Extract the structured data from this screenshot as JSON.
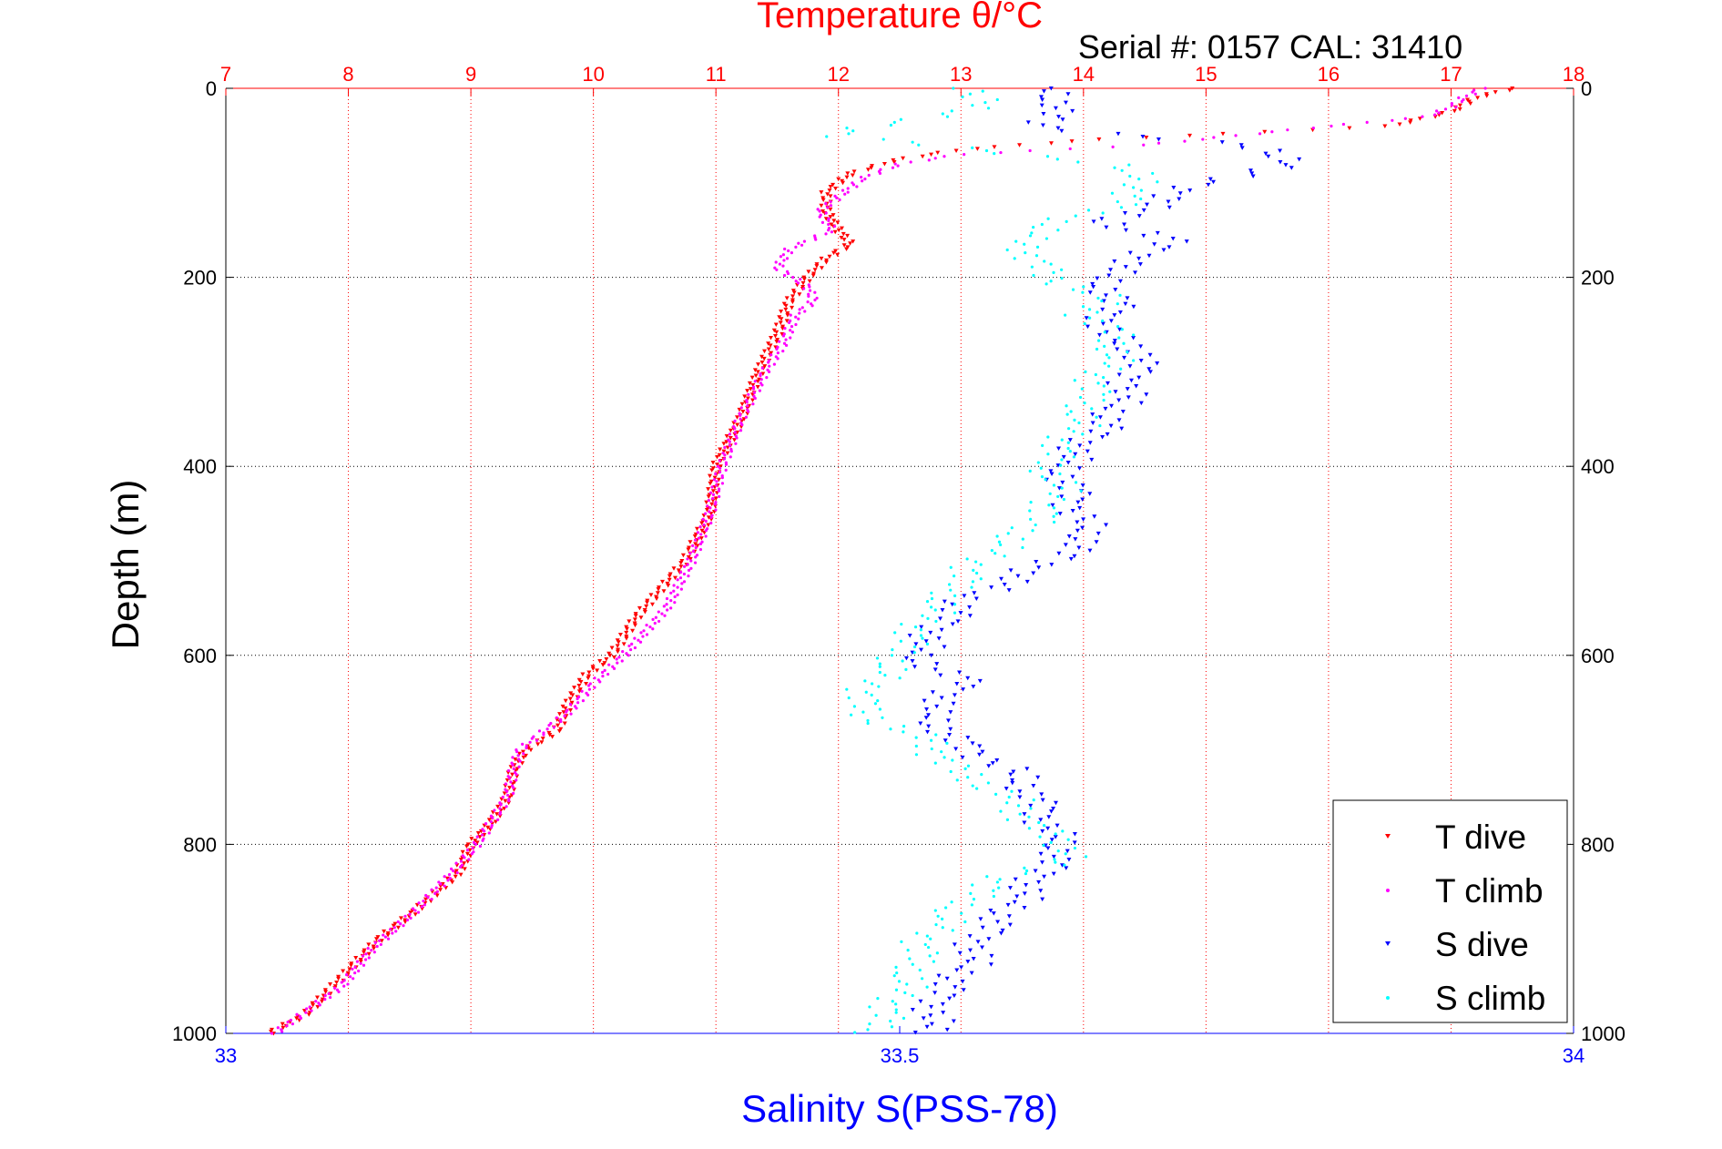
{
  "chart_data": {
    "type": "scatter",
    "title": "Temperature θ/°C",
    "subtitle": "Serial #: 0157  CAL: 31410",
    "ylabel": "Depth (m)",
    "xlabel": "Salinity S(PSS-78)",
    "ylim": [
      1000,
      0
    ],
    "y_ticks": [
      "0",
      "200",
      "400",
      "600",
      "800",
      "1000"
    ],
    "y_tick_values": [
      0,
      200,
      400,
      600,
      800,
      1000
    ],
    "temp_axis": {
      "range": [
        7,
        18
      ],
      "ticks": [
        "7",
        "8",
        "9",
        "10",
        "11",
        "12",
        "13",
        "14",
        "15",
        "16",
        "17",
        "18"
      ],
      "tick_values": [
        7,
        8,
        9,
        10,
        11,
        12,
        13,
        14,
        15,
        16,
        17,
        18
      ]
    },
    "sal_axis": {
      "range": [
        33,
        34
      ],
      "ticks": [
        "33",
        "33.5",
        "34"
      ],
      "tick_values": [
        33,
        33.5,
        34
      ]
    },
    "grid": true,
    "legend_position": "bottom-right",
    "colors": {
      "t_dive": "#ff0000",
      "t_climb": "#ff00ff",
      "s_dive": "#0000ff",
      "s_climb": "#00ffff",
      "temp_axis": "#ff0000",
      "sal_axis": "#0000ff",
      "title": "#ff0000",
      "xlabel": "#0000ff"
    },
    "series": [
      {
        "name": "T dive",
        "axis": "temperature",
        "marker": "v",
        "depth": [
          0,
          10,
          25,
          40,
          55,
          65,
          75,
          90,
          110,
          130,
          150,
          165,
          180,
          200,
          225,
          260,
          300,
          350,
          400,
          450,
          500,
          530,
          560,
          600,
          620,
          650,
          680,
          700,
          720,
          750,
          780,
          800,
          830,
          870,
          900,
          940,
          980,
          1000
        ],
        "values": [
          17.5,
          17.2,
          17.0,
          16.5,
          14.0,
          13.0,
          12.5,
          12.1,
          11.9,
          11.9,
          12.0,
          12.1,
          11.9,
          11.75,
          11.6,
          11.5,
          11.35,
          11.2,
          11.0,
          10.95,
          10.75,
          10.55,
          10.35,
          10.15,
          9.95,
          9.8,
          9.7,
          9.45,
          9.35,
          9.3,
          9.15,
          9.0,
          8.9,
          8.55,
          8.25,
          7.95,
          7.65,
          7.35
        ]
      },
      {
        "name": "T climb",
        "axis": "temperature",
        "marker": ".",
        "depth": [
          0,
          10,
          20,
          30,
          40,
          60,
          70,
          80,
          95,
          110,
          130,
          150,
          170,
          190,
          210,
          225,
          240,
          270,
          300,
          350,
          400,
          450,
          500,
          550,
          600,
          630,
          660,
          680,
          700,
          720,
          750,
          780,
          800,
          830,
          870,
          910,
          950,
          1000
        ],
        "values": [
          17.25,
          17.1,
          17.0,
          16.8,
          16.0,
          14.5,
          13.0,
          12.5,
          12.2,
          12.05,
          11.85,
          11.95,
          11.6,
          11.5,
          11.75,
          11.8,
          11.65,
          11.55,
          11.4,
          11.2,
          11.05,
          10.95,
          10.8,
          10.6,
          10.25,
          10.0,
          9.8,
          9.6,
          9.4,
          9.35,
          9.3,
          9.15,
          9.05,
          8.85,
          8.55,
          8.2,
          7.95,
          7.4
        ]
      },
      {
        "name": "S dive",
        "axis": "salinity",
        "marker": "v",
        "depth": [
          0,
          20,
          40,
          60,
          80,
          100,
          120,
          140,
          160,
          180,
          200,
          230,
          260,
          280,
          320,
          360,
          400,
          440,
          480,
          510,
          540,
          570,
          600,
          630,
          660,
          690,
          720,
          750,
          780,
          810,
          840,
          870,
          900,
          930,
          960,
          1000
        ],
        "values": [
          33.61,
          33.62,
          33.6,
          33.75,
          33.8,
          33.72,
          33.7,
          33.65,
          33.7,
          33.68,
          33.65,
          33.66,
          33.65,
          33.68,
          33.67,
          33.65,
          33.62,
          33.63,
          33.64,
          33.6,
          33.55,
          33.53,
          33.51,
          33.55,
          33.52,
          33.54,
          33.58,
          33.6,
          33.61,
          33.62,
          33.6,
          33.58,
          33.56,
          33.55,
          33.53,
          33.52
        ]
      },
      {
        "name": "S climb",
        "axis": "salinity",
        "marker": ".",
        "depth": [
          0,
          15,
          30,
          50,
          80,
          100,
          120,
          140,
          160,
          180,
          200,
          220,
          240,
          260,
          280,
          300,
          330,
          360,
          400,
          430,
          460,
          500,
          530,
          560,
          600,
          630,
          660,
          690,
          720,
          750,
          780,
          810,
          840,
          870,
          900,
          930,
          960,
          1000
        ],
        "values": [
          33.55,
          33.57,
          33.52,
          33.45,
          33.66,
          33.68,
          33.67,
          33.62,
          33.59,
          33.6,
          33.61,
          33.65,
          33.64,
          33.66,
          33.66,
          33.65,
          33.64,
          33.63,
          33.61,
          33.62,
          33.6,
          33.56,
          33.54,
          33.52,
          33.5,
          33.48,
          33.47,
          33.52,
          33.54,
          33.58,
          33.6,
          33.63,
          33.57,
          33.54,
          33.52,
          33.51,
          33.5,
          33.48
        ]
      }
    ]
  }
}
